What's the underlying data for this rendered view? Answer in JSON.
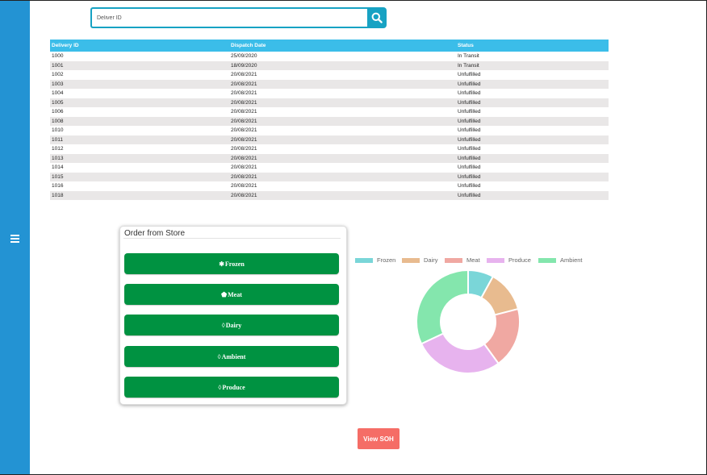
{
  "search": {
    "placeholder": "Deliver ID"
  },
  "table": {
    "headers": [
      "Delivery ID",
      "Dispatch Date",
      "Status"
    ],
    "rows": [
      [
        "1000",
        "25/09/2020",
        "In Transit"
      ],
      [
        "1001",
        "18/09/2020",
        "In Transit"
      ],
      [
        "1002",
        "20/08/2021",
        "Unfulfilled"
      ],
      [
        "1003",
        "20/08/2021",
        "Unfulfilled"
      ],
      [
        "1004",
        "20/08/2021",
        "Unfulfilled"
      ],
      [
        "1005",
        "20/08/2021",
        "Unfulfilled"
      ],
      [
        "1006",
        "20/08/2021",
        "Unfulfilled"
      ],
      [
        "1008",
        "20/08/2021",
        "Unfulfilled"
      ],
      [
        "1010",
        "20/08/2021",
        "Unfulfilled"
      ],
      [
        "1011",
        "20/08/2021",
        "Unfulfilled"
      ],
      [
        "1012",
        "20/08/2021",
        "Unfulfilled"
      ],
      [
        "1013",
        "20/08/2021",
        "Unfulfilled"
      ],
      [
        "1014",
        "20/08/2021",
        "Unfulfilled"
      ],
      [
        "1015",
        "20/08/2021",
        "Unfulfilled"
      ],
      [
        "1016",
        "20/08/2021",
        "Unfulfilled"
      ],
      [
        "1018",
        "20/08/2021",
        "Unfulfilled"
      ]
    ]
  },
  "order_card": {
    "title": "Order from Store",
    "buttons": [
      {
        "label": "Frozen",
        "icon": "snowflake-icon"
      },
      {
        "label": "Meat",
        "icon": "drumstick-icon"
      },
      {
        "label": "Dairy",
        "icon": "drop-icon"
      },
      {
        "label": "Ambient",
        "icon": "drop-icon"
      },
      {
        "label": "Produce",
        "icon": "drop-icon"
      }
    ]
  },
  "chart_data": {
    "type": "pie",
    "categories": [
      "Frozen",
      "Dairy",
      "Meat",
      "Produce",
      "Ambient"
    ],
    "values": [
      8,
      13,
      19,
      28,
      32
    ],
    "colors": [
      "#7ad6d8",
      "#e8bb8f",
      "#f0a8a2",
      "#e7b3ee",
      "#84e6ad"
    ],
    "legend": "top"
  },
  "view_soh_label": "View SOH",
  "colors": {
    "sidebar": "#2393d3",
    "accent": "#17a2c3",
    "header": "#3bbde9",
    "order_button": "#009241",
    "soh_button": "#f56d66"
  }
}
